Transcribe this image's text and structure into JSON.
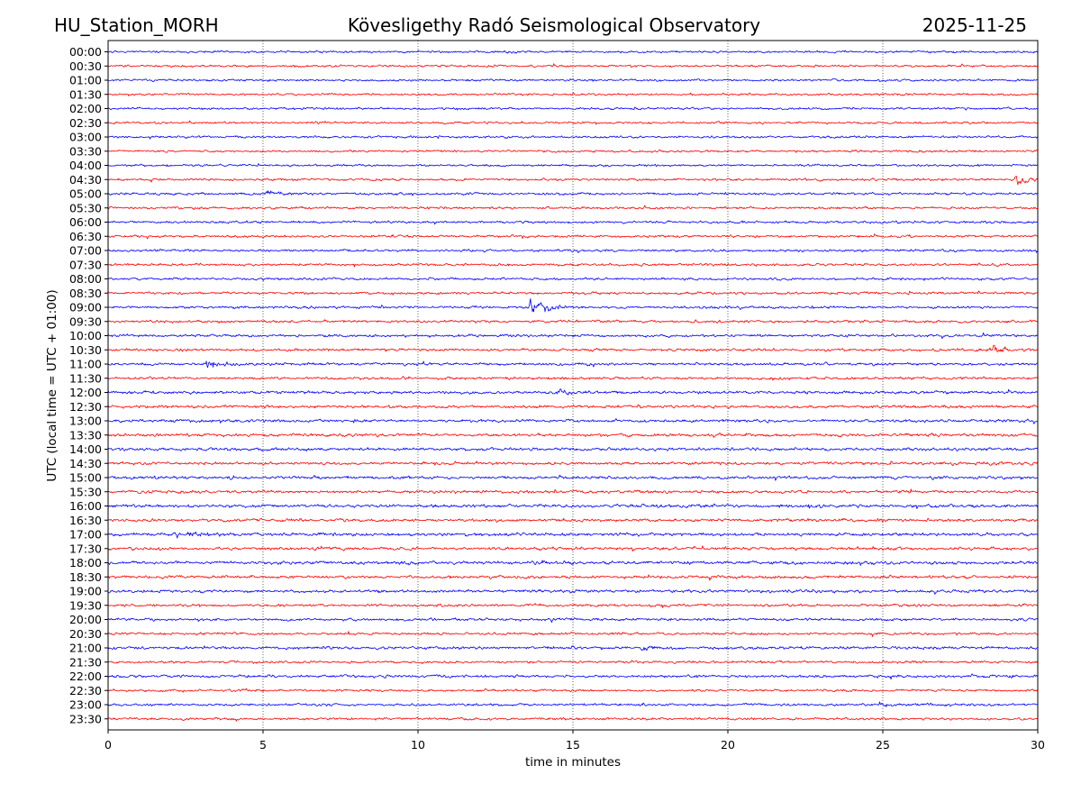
{
  "chart_data": {
    "type": "line",
    "station": "HU_Station_MORH",
    "title": "Kövesligethy Radó Seismological Observatory",
    "date": "2025-11-25",
    "xlabel": "time in minutes",
    "ylabel": "UTC (local time = UTC + 01:00)",
    "xlim": [
      0,
      30
    ],
    "x_ticks": [
      0,
      5,
      10,
      15,
      20,
      25,
      30
    ],
    "grid": "vertical dotted at each x tick",
    "trace_colors": [
      "#0000ff",
      "#ff0000"
    ],
    "rows": [
      "00:00",
      "00:30",
      "01:00",
      "01:30",
      "02:00",
      "02:30",
      "03:00",
      "03:30",
      "04:00",
      "04:30",
      "05:00",
      "05:30",
      "06:00",
      "06:30",
      "07:00",
      "07:30",
      "08:00",
      "08:30",
      "09:00",
      "09:30",
      "10:00",
      "10:30",
      "11:00",
      "11:30",
      "12:00",
      "12:30",
      "13:00",
      "13:30",
      "14:00",
      "14:30",
      "15:00",
      "15:30",
      "16:00",
      "16:30",
      "17:00",
      "17:30",
      "18:00",
      "18:30",
      "19:00",
      "19:30",
      "20:00",
      "20:30",
      "21:00",
      "21:30",
      "22:00",
      "22:30",
      "23:00",
      "23:30"
    ],
    "amplitude_scale": [
      0.9,
      0.9,
      0.9,
      0.9,
      0.9,
      0.9,
      0.9,
      0.9,
      0.9,
      1.0,
      1.0,
      1.0,
      1.0,
      1.0,
      1.0,
      1.0,
      1.0,
      1.0,
      1.0,
      1.1,
      1.1,
      1.1,
      1.1,
      1.1,
      1.2,
      1.2,
      1.2,
      1.2,
      1.2,
      1.2,
      1.2,
      1.2,
      1.3,
      1.2,
      1.3,
      1.2,
      1.3,
      1.2,
      1.2,
      1.1,
      1.1,
      1.0,
      1.2,
      1.0,
      1.1,
      1.0,
      1.0,
      1.0
    ],
    "events": [
      {
        "row": "04:30",
        "minute": 29.3,
        "amplitude": 7
      },
      {
        "row": "05:00",
        "minute": 5.1,
        "amplitude": 3
      },
      {
        "row": "09:00",
        "minute": 13.6,
        "amplitude": 12
      },
      {
        "row": "10:30",
        "minute": 28.5,
        "amplitude": 4
      },
      {
        "row": "11:00",
        "minute": 3.2,
        "amplitude": 4
      },
      {
        "row": "12:00",
        "minute": 14.5,
        "amplitude": 3
      },
      {
        "row": "17:00",
        "minute": 2.6,
        "amplitude": 3
      },
      {
        "row": "16:00",
        "minute": 22.5,
        "amplitude": 3
      },
      {
        "row": "21:00",
        "minute": 17.2,
        "amplitude": 3
      },
      {
        "row": "23:00",
        "minute": 24.9,
        "amplitude": 3
      }
    ]
  }
}
